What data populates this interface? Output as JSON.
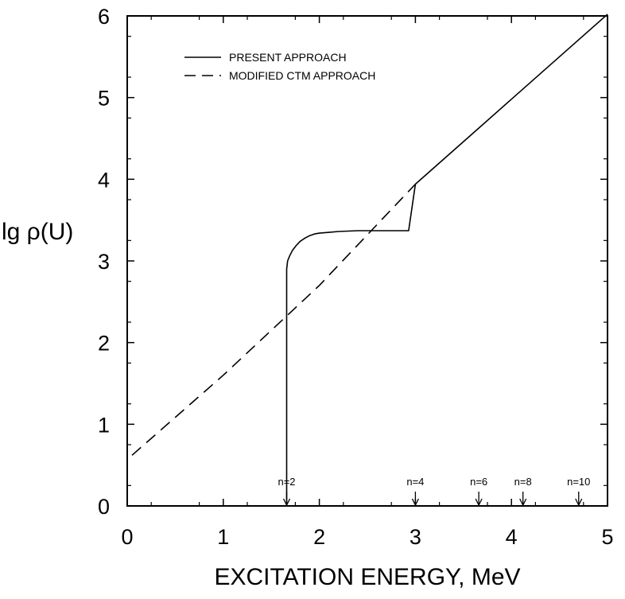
{
  "chart_data": {
    "type": "line",
    "xlabel": "EXCITATION ENERGY, MeV",
    "ylabel": "lg ρ(U)",
    "xlim": [
      0,
      5
    ],
    "ylim": [
      0,
      6
    ],
    "xticks": [
      0,
      1,
      2,
      3,
      4,
      5
    ],
    "yticks": [
      0,
      1,
      2,
      3,
      4,
      5,
      6
    ],
    "xtick_labels": [
      "0",
      "1",
      "2",
      "3",
      "4",
      "5"
    ],
    "ytick_labels": [
      "0",
      "1",
      "2",
      "3",
      "4",
      "5",
      "6"
    ],
    "grid": false,
    "legend_position": "top-left",
    "series": [
      {
        "name": "PRESENT APPROACH",
        "style": "solid",
        "color": "#000000",
        "x": [
          1.66,
          1.66,
          1.67,
          1.69,
          1.72,
          1.76,
          1.8,
          1.85,
          1.9,
          1.95,
          2.0,
          2.1,
          2.2,
          2.4,
          2.6,
          2.8,
          2.93,
          3.0,
          3.5,
          4.0,
          4.5,
          5.0
        ],
        "y": [
          0.0,
          2.9,
          3.0,
          3.06,
          3.13,
          3.19,
          3.24,
          3.28,
          3.31,
          3.33,
          3.34,
          3.35,
          3.36,
          3.37,
          3.37,
          3.37,
          3.37,
          3.94,
          4.46,
          4.98,
          5.5,
          6.02
        ]
      },
      {
        "name": "MODIFIED CTM APPROACH",
        "style": "dashed",
        "color": "#000000",
        "x": [
          0.05,
          1.0,
          2.0,
          3.0
        ],
        "y": [
          0.62,
          1.6,
          2.7,
          3.94
        ]
      }
    ],
    "annotations": [
      {
        "text": "n=2",
        "x": 1.66
      },
      {
        "text": "n=4",
        "x": 3.0
      },
      {
        "text": "n=6",
        "x": 3.66
      },
      {
        "text": "n=8",
        "x": 4.12
      },
      {
        "text": "n=10",
        "x": 4.7
      }
    ]
  }
}
